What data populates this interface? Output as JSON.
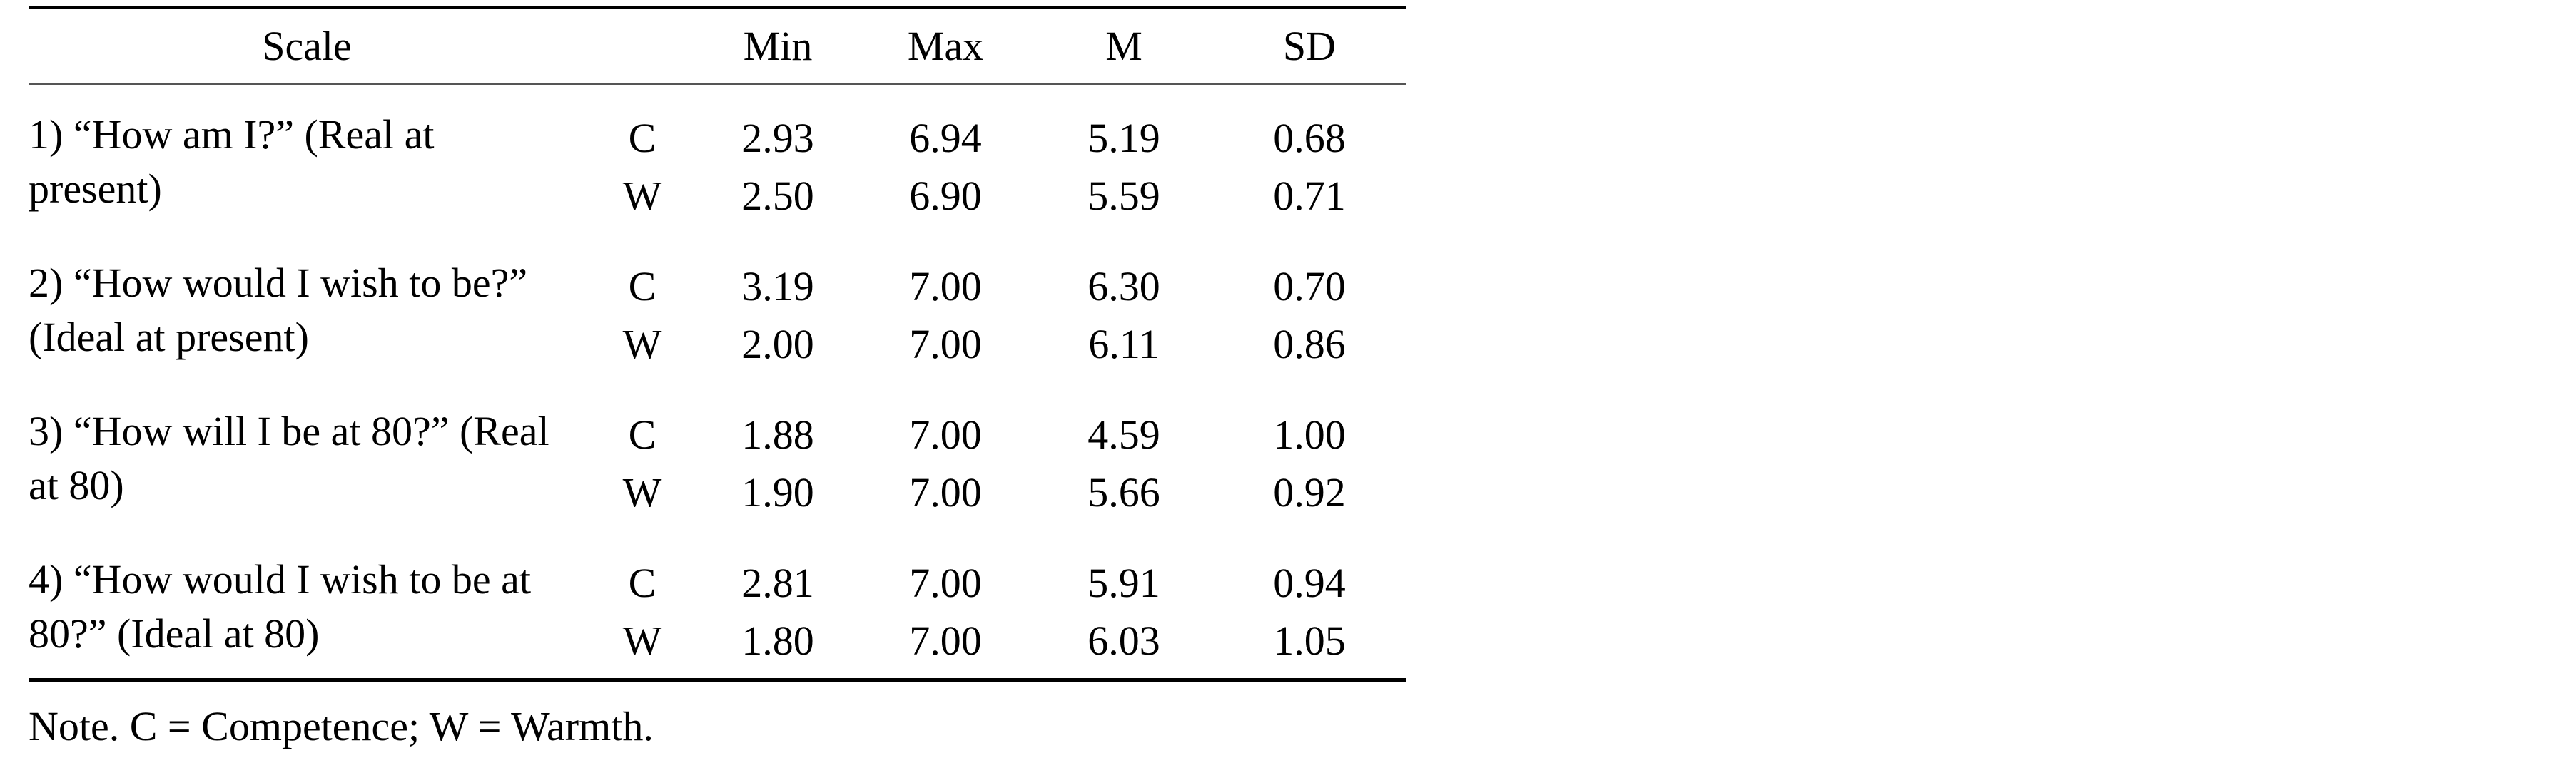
{
  "table": {
    "headers": {
      "scale": "Scale",
      "type": "",
      "min": "Min",
      "max": "Max",
      "m": "M",
      "sd": "SD"
    },
    "groups": [
      {
        "scale": "1) “How am I?” (Real at present)",
        "rows": [
          {
            "type": "C",
            "min": "2.93",
            "max": "6.94",
            "m": "5.19",
            "sd": "0.68"
          },
          {
            "type": "W",
            "min": "2.50",
            "max": "6.90",
            "m": "5.59",
            "sd": "0.71"
          }
        ]
      },
      {
        "scale": "2) “How would I wish to be?” (Ideal at present)",
        "rows": [
          {
            "type": "C",
            "min": "3.19",
            "max": "7.00",
            "m": "6.30",
            "sd": "0.70"
          },
          {
            "type": "W",
            "min": "2.00",
            "max": "7.00",
            "m": "6.11",
            "sd": "0.86"
          }
        ]
      },
      {
        "scale": "3) “How will I be at 80?” (Real at 80)",
        "rows": [
          {
            "type": "C",
            "min": "1.88",
            "max": "7.00",
            "m": "4.59",
            "sd": "1.00"
          },
          {
            "type": "W",
            "min": "1.90",
            "max": "7.00",
            "m": "5.66",
            "sd": "0.92"
          }
        ]
      },
      {
        "scale": "4) “How would I wish to be at 80?” (Ideal at 80)",
        "rows": [
          {
            "type": "C",
            "min": "2.81",
            "max": "7.00",
            "m": "5.91",
            "sd": "0.94"
          },
          {
            "type": "W",
            "min": "1.80",
            "max": "7.00",
            "m": "6.03",
            "sd": "1.05"
          }
        ]
      }
    ]
  },
  "note": "Note. C = Competence; W = Warmth."
}
